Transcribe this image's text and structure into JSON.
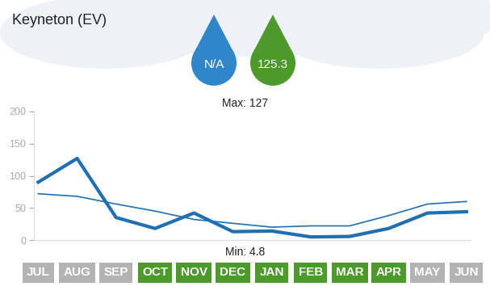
{
  "chart_data": {
    "type": "line",
    "title": "Keyneton (EV)",
    "categories": [
      "JUL",
      "AUG",
      "SEP",
      "OCT",
      "NOV",
      "DEC",
      "JAN",
      "FEB",
      "MAR",
      "APR",
      "MAY",
      "JUN"
    ],
    "colors": [
      "#b3b3b3",
      "#b3b3b3",
      "#b3b3b3",
      "#4c9a2a",
      "#4c9a2a",
      "#4c9a2a",
      "#4c9a2a",
      "#4c9a2a",
      "#4c9a2a",
      "#4c9a2a",
      "#b3b3b3",
      "#b3b3b3"
    ],
    "series": [
      {
        "color": "#1f6fb4",
        "line_style": "thin",
        "values": [
          72,
          68,
          56,
          45,
          32,
          26,
          20,
          22,
          22,
          38,
          56,
          60
        ]
      },
      {
        "color": "#1f6fb4",
        "line_style": "thick",
        "values": [
          90,
          127,
          35,
          18,
          42,
          13,
          14,
          4.8,
          5.5,
          18,
          42,
          44
        ]
      }
    ],
    "ylim": [
      0,
      200
    ],
    "yticks": [
      0,
      50,
      100,
      150,
      200
    ],
    "grid": false,
    "annotations": [
      {
        "text": "N/A",
        "color": "#2f86c8"
      },
      {
        "text": "125.3",
        "color": "#4c9a2a"
      },
      {
        "text": "Max: 127"
      },
      {
        "text": "Min: 4.8"
      }
    ]
  }
}
